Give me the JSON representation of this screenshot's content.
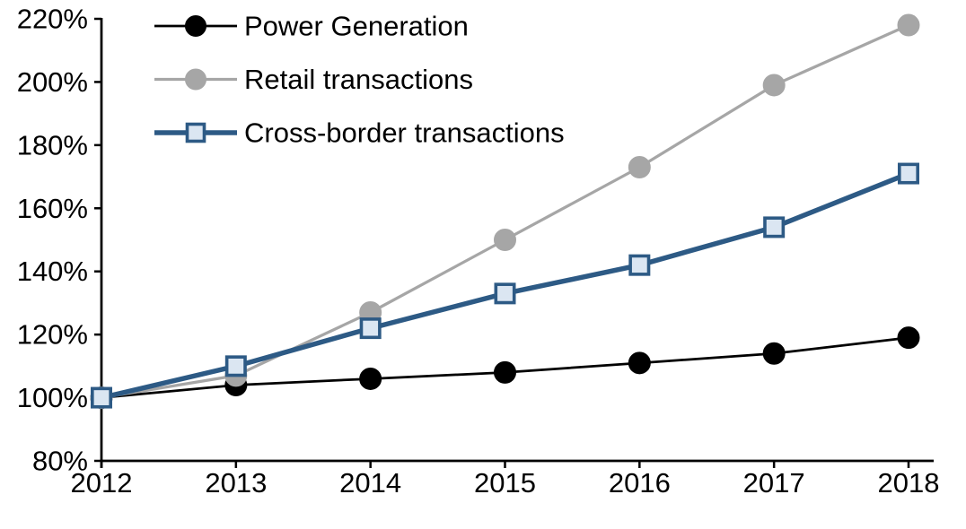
{
  "chart_data": {
    "type": "line",
    "title": "",
    "xlabel": "",
    "ylabel": "",
    "unit": "%",
    "categories": [
      2012,
      2013,
      2014,
      2015,
      2016,
      2017,
      2018
    ],
    "x_tick_labels": [
      "2012",
      "2013",
      "2014",
      "2015",
      "2016",
      "2017",
      "2018"
    ],
    "y_tick_labels": [
      "220%",
      "200%",
      "180%",
      "160%",
      "140%",
      "120%",
      "100%",
      "80%"
    ],
    "y_ticks": [
      220,
      200,
      180,
      160,
      140,
      120,
      100,
      80
    ],
    "ylim": [
      80,
      220
    ],
    "grid": false,
    "legend_position": "top-left-inside",
    "axis_color": "#000000",
    "series": [
      {
        "name": "Power Generation",
        "line_color": "#000000",
        "line_width": 2.75,
        "marker": "circle",
        "marker_fill": "#000000",
        "marker_stroke": "#000000",
        "values": [
          100,
          104,
          106,
          108,
          111,
          114,
          119
        ]
      },
      {
        "name": "Retail transactions",
        "line_color": "#a6a6a6",
        "line_width": 3.25,
        "marker": "circle",
        "marker_fill": "#a6a6a6",
        "marker_stroke": "#a6a6a6",
        "values": [
          100,
          107,
          127,
          150,
          173,
          199,
          218
        ]
      },
      {
        "name": "Cross-border transactions",
        "line_color": "#2d5a85",
        "line_width": 5.5,
        "marker": "square",
        "marker_fill": "#dbe6f2",
        "marker_stroke": "#2d5a85",
        "values": [
          100,
          110,
          122,
          133,
          142,
          154,
          171
        ]
      }
    ]
  }
}
